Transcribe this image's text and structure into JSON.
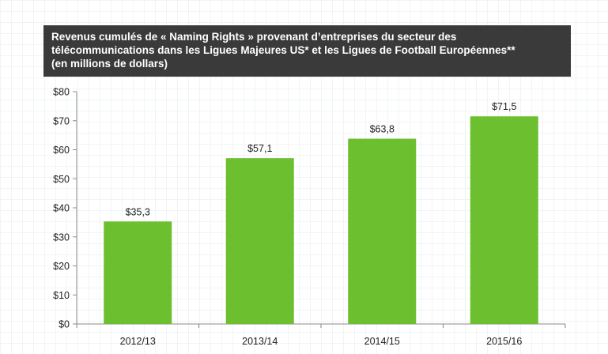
{
  "chart_data": {
    "type": "bar",
    "title_lines": [
      "Revenus cumulés de « Naming Rights » provenant d’entreprises du secteur des",
      "télécommunications dans les Ligues Majeures US* et les Ligues de Football Européennes**",
      "(en millions de dollars)"
    ],
    "categories": [
      "2012/13",
      "2013/14",
      "2014/15",
      "2015/16"
    ],
    "values": [
      35.3,
      57.1,
      63.8,
      71.5
    ],
    "value_labels": [
      "$35,3",
      "$57,1",
      "$63,8",
      "$71,5"
    ],
    "ylim": [
      0,
      80
    ],
    "y_ticks": [
      0,
      10,
      20,
      30,
      40,
      50,
      60,
      70,
      80
    ],
    "y_tick_labels": [
      "$0",
      "$10",
      "$20",
      "$30",
      "$40",
      "$50",
      "$60",
      "$70",
      "$80"
    ],
    "grid": false,
    "bar_color": "#6cc02f",
    "title_bg_color": "#3a3a3a"
  }
}
